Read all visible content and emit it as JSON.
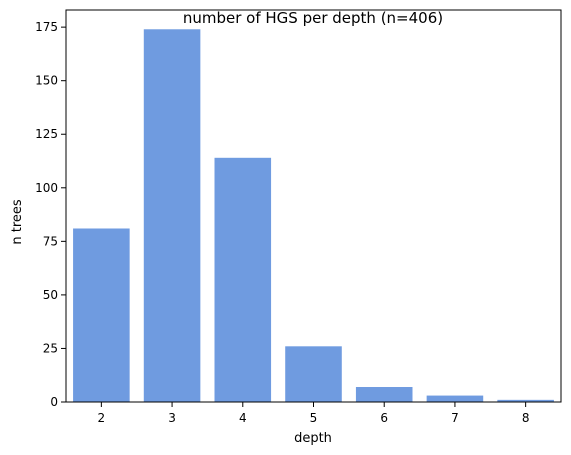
{
  "chart_data": {
    "type": "bar",
    "title": "number of HGS per depth (n=406)",
    "xlabel": "depth",
    "ylabel": "n trees",
    "categories": [
      "2",
      "3",
      "4",
      "5",
      "6",
      "7",
      "8"
    ],
    "values": [
      81,
      174,
      114,
      26,
      7,
      3,
      1
    ],
    "ylim": [
      0,
      183
    ],
    "yticks": [
      0,
      25,
      50,
      75,
      100,
      125,
      150,
      175
    ],
    "grid": false,
    "legend": "none",
    "bar_color": "#6f9be0"
  }
}
